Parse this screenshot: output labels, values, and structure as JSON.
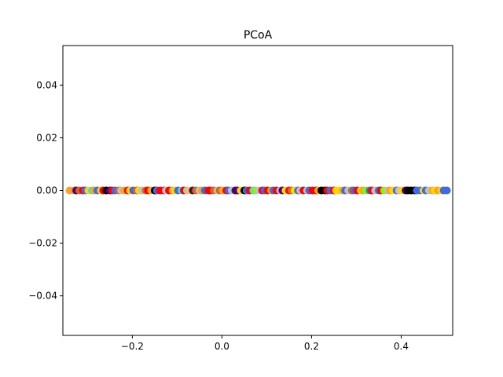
{
  "chart_data": {
    "type": "scatter",
    "title": "PCoA",
    "xlabel": "",
    "ylabel": "",
    "xlim": [
      -0.355,
      0.515
    ],
    "ylim": [
      -0.055,
      0.055
    ],
    "xticks": [
      -0.2,
      0.0,
      0.2,
      0.4
    ],
    "xtick_labels": [
      "−0.2",
      "0.0",
      "0.2",
      "0.4"
    ],
    "yticks": [
      -0.04,
      -0.02,
      0.0,
      0.02,
      0.04
    ],
    "ytick_labels": [
      "−0.04",
      "−0.02",
      "0.00",
      "0.02",
      "0.04"
    ],
    "grid": false,
    "legend": "none",
    "points": [
      {
        "x": -0.34,
        "y": 0,
        "color": "#f5a623"
      },
      {
        "x": -0.33,
        "y": 0,
        "color": "#f7931e"
      },
      {
        "x": -0.325,
        "y": 0,
        "color": "#4b0082"
      },
      {
        "x": -0.318,
        "y": 0,
        "color": "#d2691e"
      },
      {
        "x": -0.31,
        "y": 0,
        "color": "#ff0000"
      },
      {
        "x": -0.305,
        "y": 0,
        "color": "#4169e1"
      },
      {
        "x": -0.298,
        "y": 0,
        "color": "#ffd700"
      },
      {
        "x": -0.29,
        "y": 0,
        "color": "#40e0d0"
      },
      {
        "x": -0.285,
        "y": 0,
        "color": "#f5a623"
      },
      {
        "x": -0.278,
        "y": 0,
        "color": "#4169e1"
      },
      {
        "x": -0.27,
        "y": 0,
        "color": "#ffd700"
      },
      {
        "x": -0.265,
        "y": 0,
        "color": "#ff0000"
      },
      {
        "x": -0.258,
        "y": 0,
        "color": "#000000"
      },
      {
        "x": -0.25,
        "y": 0,
        "color": "#4b0082"
      },
      {
        "x": -0.245,
        "y": 0,
        "color": "#ff0000"
      },
      {
        "x": -0.238,
        "y": 0,
        "color": "#4169e1"
      },
      {
        "x": -0.23,
        "y": 0,
        "color": "#d2691e"
      },
      {
        "x": -0.225,
        "y": 0,
        "color": "#c0c0c0"
      },
      {
        "x": -0.218,
        "y": 0,
        "color": "#f5a623"
      },
      {
        "x": -0.21,
        "y": 0,
        "color": "#ff0000"
      },
      {
        "x": -0.205,
        "y": 0,
        "color": "#ffd700"
      },
      {
        "x": -0.198,
        "y": 0,
        "color": "#4169e1"
      },
      {
        "x": -0.19,
        "y": 0,
        "color": "#d2691e"
      },
      {
        "x": -0.185,
        "y": 0,
        "color": "#ffd700"
      },
      {
        "x": -0.178,
        "y": 0,
        "color": "#c0c0c0"
      },
      {
        "x": -0.17,
        "y": 0,
        "color": "#d2691e"
      },
      {
        "x": -0.165,
        "y": 0,
        "color": "#ff0000"
      },
      {
        "x": -0.158,
        "y": 0,
        "color": "#f5a623"
      },
      {
        "x": -0.15,
        "y": 0,
        "color": "#000000"
      },
      {
        "x": -0.145,
        "y": 0,
        "color": "#4169e1"
      },
      {
        "x": -0.138,
        "y": 0,
        "color": "#ff0000"
      },
      {
        "x": -0.13,
        "y": 0,
        "color": "#ff0000"
      },
      {
        "x": -0.125,
        "y": 0,
        "color": "#c0c0c0"
      },
      {
        "x": -0.118,
        "y": 0,
        "color": "#ff0000"
      },
      {
        "x": -0.11,
        "y": 0,
        "color": "#f5a623"
      },
      {
        "x": -0.105,
        "y": 0,
        "color": "#ffd700"
      },
      {
        "x": -0.098,
        "y": 0,
        "color": "#4169e1"
      },
      {
        "x": -0.09,
        "y": 0,
        "color": "#40e0d0"
      },
      {
        "x": -0.085,
        "y": 0,
        "color": "#ff0000"
      },
      {
        "x": -0.078,
        "y": 0,
        "color": "#c0c0c0"
      },
      {
        "x": -0.07,
        "y": 0,
        "color": "#ffd700"
      },
      {
        "x": -0.065,
        "y": 0,
        "color": "#4b0082"
      },
      {
        "x": -0.058,
        "y": 0,
        "color": "#d2691e"
      },
      {
        "x": -0.05,
        "y": 0,
        "color": "#c0c0c0"
      },
      {
        "x": -0.045,
        "y": 0,
        "color": "#f5a623"
      },
      {
        "x": -0.038,
        "y": 0,
        "color": "#4169e1"
      },
      {
        "x": -0.03,
        "y": 0,
        "color": "#ff0000"
      },
      {
        "x": -0.025,
        "y": 0,
        "color": "#ff0000"
      },
      {
        "x": -0.018,
        "y": 0,
        "color": "#d2691e"
      },
      {
        "x": -0.01,
        "y": 0,
        "color": "#c0c0c0"
      },
      {
        "x": -0.005,
        "y": 0,
        "color": "#d2691e"
      },
      {
        "x": 0.002,
        "y": 0,
        "color": "#f5a623"
      },
      {
        "x": 0.01,
        "y": 0,
        "color": "#ff0000"
      },
      {
        "x": 0.015,
        "y": 0,
        "color": "#4169e1"
      },
      {
        "x": 0.022,
        "y": 0,
        "color": "#c0c0c0"
      },
      {
        "x": 0.03,
        "y": 0,
        "color": "#4b0082"
      },
      {
        "x": 0.035,
        "y": 0,
        "color": "#4b0082"
      },
      {
        "x": 0.042,
        "y": 0,
        "color": "#ffd700"
      },
      {
        "x": 0.05,
        "y": 0,
        "color": "#000000"
      },
      {
        "x": 0.055,
        "y": 0,
        "color": "#4169e1"
      },
      {
        "x": 0.062,
        "y": 0,
        "color": "#ff0000"
      },
      {
        "x": 0.07,
        "y": 0,
        "color": "#40e0d0"
      },
      {
        "x": 0.075,
        "y": 0,
        "color": "#7cfc00"
      },
      {
        "x": 0.082,
        "y": 0,
        "color": "#c0c0c0"
      },
      {
        "x": 0.09,
        "y": 0,
        "color": "#ff0000"
      },
      {
        "x": 0.095,
        "y": 0,
        "color": "#4169e1"
      },
      {
        "x": 0.102,
        "y": 0,
        "color": "#ff0000"
      },
      {
        "x": 0.11,
        "y": 0,
        "color": "#f5a623"
      },
      {
        "x": 0.115,
        "y": 0,
        "color": "#4169e1"
      },
      {
        "x": 0.122,
        "y": 0,
        "color": "#ff0000"
      },
      {
        "x": 0.13,
        "y": 0,
        "color": "#c0c0c0"
      },
      {
        "x": 0.135,
        "y": 0,
        "color": "#4b0082"
      },
      {
        "x": 0.142,
        "y": 0,
        "color": "#ffd700"
      },
      {
        "x": 0.15,
        "y": 0,
        "color": "#ff0000"
      },
      {
        "x": 0.155,
        "y": 0,
        "color": "#d2691e"
      },
      {
        "x": 0.162,
        "y": 0,
        "color": "#ffd700"
      },
      {
        "x": 0.17,
        "y": 0,
        "color": "#4169e1"
      },
      {
        "x": 0.175,
        "y": 0,
        "color": "#c0c0c0"
      },
      {
        "x": 0.182,
        "y": 0,
        "color": "#ff0000"
      },
      {
        "x": 0.19,
        "y": 0,
        "color": "#c0c0c0"
      },
      {
        "x": 0.195,
        "y": 0,
        "color": "#4169e1"
      },
      {
        "x": 0.202,
        "y": 0,
        "color": "#ff0000"
      },
      {
        "x": 0.21,
        "y": 0,
        "color": "#ff0000"
      },
      {
        "x": 0.215,
        "y": 0,
        "color": "#f5a623"
      },
      {
        "x": 0.222,
        "y": 0,
        "color": "#000000"
      },
      {
        "x": 0.23,
        "y": 0,
        "color": "#000000"
      },
      {
        "x": 0.235,
        "y": 0,
        "color": "#ff0000"
      },
      {
        "x": 0.242,
        "y": 0,
        "color": "#4169e1"
      },
      {
        "x": 0.25,
        "y": 0,
        "color": "#ff0000"
      },
      {
        "x": 0.255,
        "y": 0,
        "color": "#ffd700"
      },
      {
        "x": 0.262,
        "y": 0,
        "color": "#ffd700"
      },
      {
        "x": 0.27,
        "y": 0,
        "color": "#f5a623"
      },
      {
        "x": 0.275,
        "y": 0,
        "color": "#4169e1"
      },
      {
        "x": 0.282,
        "y": 0,
        "color": "#c0c0c0"
      },
      {
        "x": 0.29,
        "y": 0,
        "color": "#d2691e"
      },
      {
        "x": 0.295,
        "y": 0,
        "color": "#4169e1"
      },
      {
        "x": 0.302,
        "y": 0,
        "color": "#ff0000"
      },
      {
        "x": 0.31,
        "y": 0,
        "color": "#ffd700"
      },
      {
        "x": 0.315,
        "y": 0,
        "color": "#f5a623"
      },
      {
        "x": 0.322,
        "y": 0,
        "color": "#7cfc00"
      },
      {
        "x": 0.33,
        "y": 0,
        "color": "#4169e1"
      },
      {
        "x": 0.335,
        "y": 0,
        "color": "#ff0000"
      },
      {
        "x": 0.342,
        "y": 0,
        "color": "#c0c0c0"
      },
      {
        "x": 0.35,
        "y": 0,
        "color": "#4169e1"
      },
      {
        "x": 0.355,
        "y": 0,
        "color": "#ff0000"
      },
      {
        "x": 0.362,
        "y": 0,
        "color": "#7cfc00"
      },
      {
        "x": 0.37,
        "y": 0,
        "color": "#c0c0c0"
      },
      {
        "x": 0.375,
        "y": 0,
        "color": "#f5a623"
      },
      {
        "x": 0.382,
        "y": 0,
        "color": "#ffd700"
      },
      {
        "x": 0.39,
        "y": 0,
        "color": "#4169e1"
      },
      {
        "x": 0.395,
        "y": 0,
        "color": "#c0c0c0"
      },
      {
        "x": 0.402,
        "y": 0,
        "color": "#ffd700"
      },
      {
        "x": 0.41,
        "y": 0,
        "color": "#4b0082"
      },
      {
        "x": 0.415,
        "y": 0,
        "color": "#000000"
      },
      {
        "x": 0.422,
        "y": 0,
        "color": "#000000"
      },
      {
        "x": 0.43,
        "y": 0,
        "color": "#000000"
      },
      {
        "x": 0.435,
        "y": 0,
        "color": "#4169e1"
      },
      {
        "x": 0.442,
        "y": 0,
        "color": "#4169e1"
      },
      {
        "x": 0.45,
        "y": 0,
        "color": "#ffd700"
      },
      {
        "x": 0.455,
        "y": 0,
        "color": "#4169e1"
      },
      {
        "x": 0.462,
        "y": 0,
        "color": "#c0c0c0"
      },
      {
        "x": 0.47,
        "y": 0,
        "color": "#f5a623"
      },
      {
        "x": 0.475,
        "y": 0,
        "color": "#ffd700"
      },
      {
        "x": 0.482,
        "y": 0,
        "color": "#f5a623"
      },
      {
        "x": 0.49,
        "y": 0,
        "color": "#ffd700"
      },
      {
        "x": 0.495,
        "y": 0,
        "color": "#4169e1"
      },
      {
        "x": 0.502,
        "y": 0,
        "color": "#4169e1"
      }
    ]
  }
}
